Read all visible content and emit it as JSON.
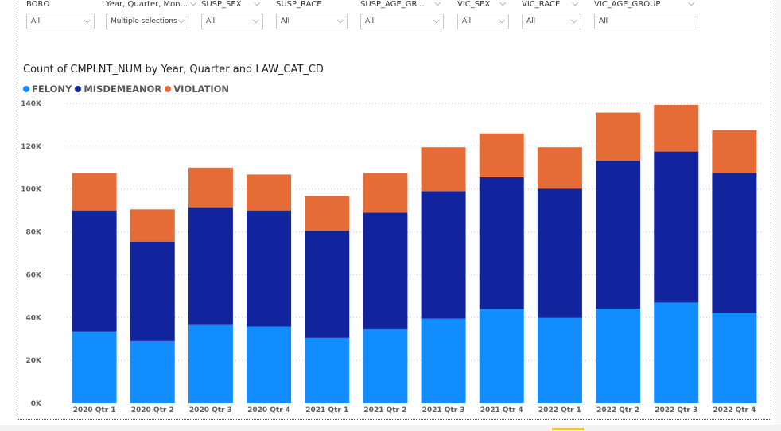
{
  "slicers": [
    {
      "title": "BORO",
      "value": "All"
    },
    {
      "title": "Year, Quarter, Mon...",
      "value": "Multiple selections"
    },
    {
      "title": "SUSP_SEX",
      "value": "All"
    },
    {
      "title": "SUSP_RACE",
      "value": "All"
    },
    {
      "title": "SUSP_AGE_GR...",
      "value": "All"
    },
    {
      "title": "VIC_SEX",
      "value": "All"
    },
    {
      "title": "VIC_RACE",
      "value": "All"
    },
    {
      "title": "VIC_AGE_GROUP",
      "value": "All"
    }
  ],
  "colors": {
    "felony": "#118dff",
    "misdemeanor": "#12239e",
    "violation": "#e66c37"
  },
  "chart_data": {
    "type": "bar",
    "stacked": true,
    "title": "Count of CMPLNT_NUM by Year, Quarter and LAW_CAT_CD",
    "xlabel": "",
    "ylabel": "",
    "categories": [
      "2020 Qtr 1",
      "2020 Qtr 2",
      "2020 Qtr 3",
      "2020 Qtr 4",
      "2021 Qtr 1",
      "2021 Qtr 2",
      "2021 Qtr 3",
      "2021 Qtr 4",
      "2022 Qtr 1",
      "2022 Qtr 2",
      "2022 Qtr 3",
      "2022 Qtr 4"
    ],
    "ylim": [
      0,
      140000
    ],
    "yticks": [
      0,
      20000,
      40000,
      60000,
      80000,
      100000,
      120000,
      140000
    ],
    "ytick_labels": [
      "0K",
      "20K",
      "40K",
      "60K",
      "80K",
      "100K",
      "120K",
      "140K"
    ],
    "grid": true,
    "legend_position": "top-left",
    "series": [
      {
        "name": "FELONY",
        "values": [
          33500,
          29000,
          36500,
          35800,
          30500,
          34500,
          39500,
          44000,
          39800,
          44200,
          47000,
          42000
        ]
      },
      {
        "name": "MISDEMEANOR",
        "values": [
          56500,
          46500,
          55000,
          54200,
          50000,
          54500,
          59500,
          61500,
          60400,
          69000,
          70500,
          65500
        ]
      },
      {
        "name": "VIOLATION",
        "values": [
          17500,
          15000,
          18500,
          16800,
          16300,
          18500,
          20500,
          20500,
          19300,
          22500,
          21800,
          20000
        ]
      }
    ]
  }
}
